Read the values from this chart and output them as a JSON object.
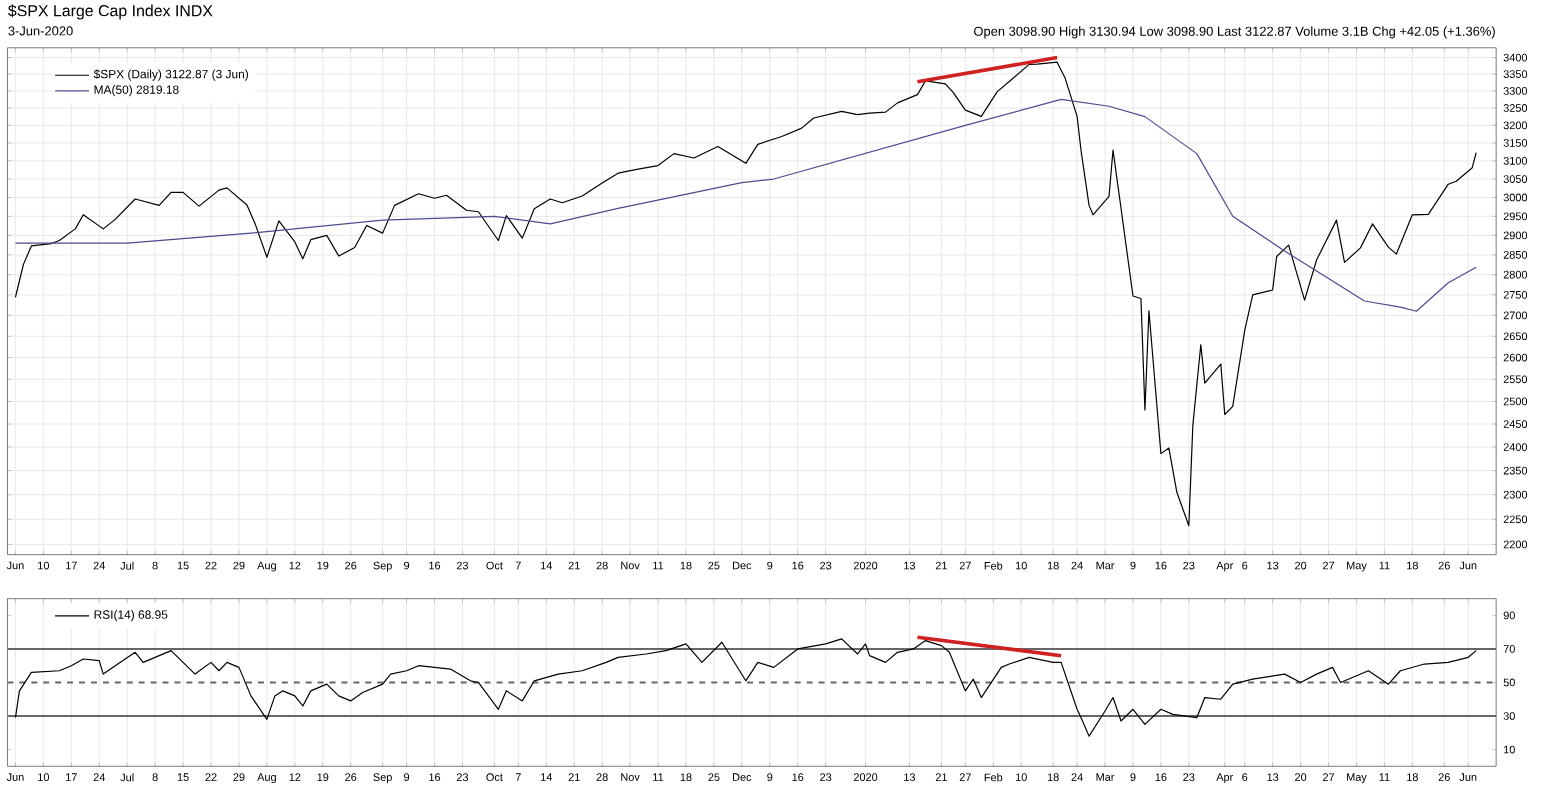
{
  "chart_data": [
    {
      "type": "line",
      "title": "$SPX Large Cap Index INDX",
      "subtitle": "3-Jun-2020",
      "annotations": [
        "Open 3098.90 High 3130.94 Low 3098.90 Last 3122.87 Volume 3.1B Chg +42.05 (+1.36%)"
      ],
      "log": "y",
      "grid": true,
      "legend": "top left",
      "xlim": [
        "2019-06-01",
        "2020-06-08"
      ],
      "xticks": [
        {
          "value": "2019-06-03",
          "label": "Jun"
        },
        {
          "value": "2019-06-10",
          "label": "10"
        },
        {
          "value": "2019-06-17",
          "label": "17"
        },
        {
          "value": "2019-06-24",
          "label": "24"
        },
        {
          "value": "2019-07-01",
          "label": "Jul"
        },
        {
          "value": "2019-07-08",
          "label": "8"
        },
        {
          "value": "2019-07-15",
          "label": "15"
        },
        {
          "value": "2019-07-22",
          "label": "22"
        },
        {
          "value": "2019-07-29",
          "label": "29"
        },
        {
          "value": "2019-08-05",
          "label": "Aug"
        },
        {
          "value": "2019-08-12",
          "label": "12"
        },
        {
          "value": "2019-08-19",
          "label": "19"
        },
        {
          "value": "2019-08-26",
          "label": "26"
        },
        {
          "value": "2019-09-03",
          "label": "Sep"
        },
        {
          "value": "2019-09-09",
          "label": "9"
        },
        {
          "value": "2019-09-16",
          "label": "16"
        },
        {
          "value": "2019-09-23",
          "label": "23"
        },
        {
          "value": "2019-10-01",
          "label": "Oct"
        },
        {
          "value": "2019-10-07",
          "label": "7"
        },
        {
          "value": "2019-10-14",
          "label": "14"
        },
        {
          "value": "2019-10-21",
          "label": "21"
        },
        {
          "value": "2019-10-28",
          "label": "28"
        },
        {
          "value": "2019-11-04",
          "label": "Nov"
        },
        {
          "value": "2019-11-11",
          "label": "11"
        },
        {
          "value": "2019-11-18",
          "label": "18"
        },
        {
          "value": "2019-11-25",
          "label": "25"
        },
        {
          "value": "2019-12-02",
          "label": "Dec"
        },
        {
          "value": "2019-12-09",
          "label": "9"
        },
        {
          "value": "2019-12-16",
          "label": "16"
        },
        {
          "value": "2019-12-23",
          "label": "23"
        },
        {
          "value": "2020-01-02",
          "label": "2020"
        },
        {
          "value": "2020-01-13",
          "label": "13"
        },
        {
          "value": "2020-01-21",
          "label": "21"
        },
        {
          "value": "2020-01-27",
          "label": "27"
        },
        {
          "value": "2020-02-03",
          "label": "Feb"
        },
        {
          "value": "2020-02-10",
          "label": "10"
        },
        {
          "value": "2020-02-18",
          "label": "18"
        },
        {
          "value": "2020-02-24",
          "label": "24"
        },
        {
          "value": "2020-03-02",
          "label": "Mar"
        },
        {
          "value": "2020-03-09",
          "label": "9"
        },
        {
          "value": "2020-03-16",
          "label": "16"
        },
        {
          "value": "2020-03-23",
          "label": "23"
        },
        {
          "value": "2020-04-01",
          "label": "Apr"
        },
        {
          "value": "2020-04-06",
          "label": "6"
        },
        {
          "value": "2020-04-13",
          "label": "13"
        },
        {
          "value": "2020-04-20",
          "label": "20"
        },
        {
          "value": "2020-04-27",
          "label": "27"
        },
        {
          "value": "2020-05-04",
          "label": "May"
        },
        {
          "value": "2020-05-11",
          "label": "11"
        },
        {
          "value": "2020-05-18",
          "label": "18"
        },
        {
          "value": "2020-05-26",
          "label": "26"
        },
        {
          "value": "2020-06-01",
          "label": "Jun"
        }
      ],
      "ylim": [
        2180,
        3430
      ],
      "yticks": [
        2200,
        2250,
        2300,
        2350,
        2400,
        2450,
        2500,
        2550,
        2600,
        2650,
        2700,
        2750,
        2800,
        2850,
        2900,
        2950,
        3000,
        3050,
        3100,
        3150,
        3200,
        3250,
        3300,
        3350,
        3400
      ],
      "series": [
        {
          "name": "$SPX (Daily) 3122.87 (3 Jun)",
          "color": "#000000",
          "x": [
            "2019-06-03",
            "2019-06-05",
            "2019-06-07",
            "2019-06-12",
            "2019-06-14",
            "2019-06-18",
            "2019-06-20",
            "2019-06-25",
            "2019-06-28",
            "2019-07-03",
            "2019-07-09",
            "2019-07-12",
            "2019-07-15",
            "2019-07-19",
            "2019-07-24",
            "2019-07-26",
            "2019-07-31",
            "2019-08-02",
            "2019-08-05",
            "2019-08-08",
            "2019-08-12",
            "2019-08-14",
            "2019-08-16",
            "2019-08-20",
            "2019-08-23",
            "2019-08-27",
            "2019-08-30",
            "2019-09-03",
            "2019-09-06",
            "2019-09-12",
            "2019-09-16",
            "2019-09-19",
            "2019-09-24",
            "2019-09-27",
            "2019-10-02",
            "2019-10-04",
            "2019-10-08",
            "2019-10-11",
            "2019-10-15",
            "2019-10-18",
            "2019-10-23",
            "2019-10-28",
            "2019-11-01",
            "2019-11-06",
            "2019-11-11",
            "2019-11-15",
            "2019-11-20",
            "2019-11-26",
            "2019-12-03",
            "2019-12-06",
            "2019-12-12",
            "2019-12-17",
            "2019-12-20",
            "2019-12-27",
            "2019-12-31",
            "2020-01-03",
            "2020-01-07",
            "2020-01-10",
            "2020-01-15",
            "2020-01-17",
            "2020-01-22",
            "2020-01-24",
            "2020-01-27",
            "2020-01-31",
            "2020-02-04",
            "2020-02-07",
            "2020-02-12",
            "2020-02-14",
            "2020-02-19",
            "2020-02-21",
            "2020-02-24",
            "2020-02-25",
            "2020-02-27",
            "2020-02-28",
            "2020-03-03",
            "2020-03-04",
            "2020-03-06",
            "2020-03-09",
            "2020-03-11",
            "2020-03-12",
            "2020-03-13",
            "2020-03-16",
            "2020-03-18",
            "2020-03-20",
            "2020-03-23",
            "2020-03-24",
            "2020-03-26",
            "2020-03-27",
            "2020-03-31",
            "2020-04-01",
            "2020-04-03",
            "2020-04-06",
            "2020-04-08",
            "2020-04-13",
            "2020-04-14",
            "2020-04-17",
            "2020-04-21",
            "2020-04-24",
            "2020-04-29",
            "2020-05-01",
            "2020-05-05",
            "2020-05-08",
            "2020-05-12",
            "2020-05-14",
            "2020-05-18",
            "2020-05-22",
            "2020-05-27",
            "2020-05-29",
            "2020-06-02",
            "2020-06-03"
          ],
          "values": [
            2744,
            2826,
            2873,
            2879,
            2887,
            2917,
            2954,
            2917,
            2942,
            2996,
            2979,
            3014,
            3014,
            2977,
            3020,
            3026,
            2980,
            2932,
            2844,
            2938,
            2883,
            2840,
            2889,
            2900,
            2847,
            2869,
            2926,
            2906,
            2979,
            3010,
            2998,
            3006,
            2966,
            2962,
            2887,
            2952,
            2893,
            2970,
            2996,
            2986,
            3004,
            3039,
            3066,
            3077,
            3087,
            3120,
            3108,
            3140,
            3093,
            3146,
            3168,
            3192,
            3221,
            3240,
            3231,
            3235,
            3238,
            3265,
            3289,
            3330,
            3321,
            3295,
            3244,
            3226,
            3298,
            3328,
            3379,
            3380,
            3386,
            3338,
            3226,
            3128,
            2979,
            2954,
            3003,
            3130,
            2972,
            2747,
            2741,
            2481,
            2711,
            2386,
            2398,
            2305,
            2237,
            2447,
            2630,
            2541,
            2585,
            2471,
            2489,
            2664,
            2750,
            2762,
            2846,
            2875,
            2737,
            2837,
            2940,
            2831,
            2868,
            2930,
            2870,
            2852,
            2954,
            2955,
            3036,
            3044,
            3081,
            3123
          ]
        },
        {
          "name": "MA(50) 2819.18",
          "color": "#4b4b8f",
          "x": [
            "2019-06-03",
            "2019-07-01",
            "2019-08-01",
            "2019-09-03",
            "2019-10-01",
            "2019-10-15",
            "2019-11-01",
            "2019-12-02",
            "2019-12-10",
            "2020-01-27",
            "2020-02-20",
            "2020-03-03",
            "2020-03-12",
            "2020-03-25",
            "2020-04-03",
            "2020-04-16",
            "2020-05-06",
            "2020-05-15",
            "2020-05-19",
            "2020-05-27",
            "2020-06-03"
          ],
          "values": [
            2880,
            2880,
            2906,
            2940,
            2950,
            2930,
            2971,
            3040,
            3050,
            3200,
            3275,
            3255,
            3225,
            3120,
            2950,
            2860,
            2735,
            2720,
            2710,
            2780,
            2819
          ]
        },
        {
          "color": "#d02020",
          "x": [
            "2020-01-15",
            "2020-02-19"
          ],
          "values": [
            3327,
            3400
          ]
        }
      ]
    },
    {
      "type": "line",
      "grid": "x",
      "legend": "top left",
      "xlim": [
        "2019-06-01",
        "2020-06-08"
      ],
      "xticks": [
        {
          "value": "2019-06-03",
          "label": "Jun"
        },
        {
          "value": "2019-06-10",
          "label": "10"
        },
        {
          "value": "2019-06-17",
          "label": "17"
        },
        {
          "value": "2019-06-24",
          "label": "24"
        },
        {
          "value": "2019-07-01",
          "label": "Jul"
        },
        {
          "value": "2019-07-08",
          "label": "8"
        },
        {
          "value": "2019-07-15",
          "label": "15"
        },
        {
          "value": "2019-07-22",
          "label": "22"
        },
        {
          "value": "2019-07-29",
          "label": "29"
        },
        {
          "value": "2019-08-05",
          "label": "Aug"
        },
        {
          "value": "2019-08-12",
          "label": "12"
        },
        {
          "value": "2019-08-19",
          "label": "19"
        },
        {
          "value": "2019-08-26",
          "label": "26"
        },
        {
          "value": "2019-09-03",
          "label": "Sep"
        },
        {
          "value": "2019-09-09",
          "label": "9"
        },
        {
          "value": "2019-09-16",
          "label": "16"
        },
        {
          "value": "2019-09-23",
          "label": "23"
        },
        {
          "value": "2019-10-01",
          "label": "Oct"
        },
        {
          "value": "2019-10-07",
          "label": "7"
        },
        {
          "value": "2019-10-14",
          "label": "14"
        },
        {
          "value": "2019-10-21",
          "label": "21"
        },
        {
          "value": "2019-10-28",
          "label": "28"
        },
        {
          "value": "2019-11-04",
          "label": "Nov"
        },
        {
          "value": "2019-11-11",
          "label": "11"
        },
        {
          "value": "2019-11-18",
          "label": "18"
        },
        {
          "value": "2019-11-25",
          "label": "25"
        },
        {
          "value": "2019-12-02",
          "label": "Dec"
        },
        {
          "value": "2019-12-09",
          "label": "9"
        },
        {
          "value": "2019-12-16",
          "label": "16"
        },
        {
          "value": "2019-12-23",
          "label": "23"
        },
        {
          "value": "2020-01-02",
          "label": "2020"
        },
        {
          "value": "2020-01-13",
          "label": "13"
        },
        {
          "value": "2020-01-21",
          "label": "21"
        },
        {
          "value": "2020-01-27",
          "label": "27"
        },
        {
          "value": "2020-02-03",
          "label": "Feb"
        },
        {
          "value": "2020-02-10",
          "label": "10"
        },
        {
          "value": "2020-02-18",
          "label": "18"
        },
        {
          "value": "2020-02-24",
          "label": "24"
        },
        {
          "value": "2020-03-02",
          "label": "Mar"
        },
        {
          "value": "2020-03-09",
          "label": "9"
        },
        {
          "value": "2020-03-16",
          "label": "16"
        },
        {
          "value": "2020-03-23",
          "label": "23"
        },
        {
          "value": "2020-04-01",
          "label": "Apr"
        },
        {
          "value": "2020-04-06",
          "label": "6"
        },
        {
          "value": "2020-04-13",
          "label": "13"
        },
        {
          "value": "2020-04-20",
          "label": "20"
        },
        {
          "value": "2020-04-27",
          "label": "27"
        },
        {
          "value": "2020-05-04",
          "label": "May"
        },
        {
          "value": "2020-05-11",
          "label": "11"
        },
        {
          "value": "2020-05-18",
          "label": "18"
        },
        {
          "value": "2020-05-26",
          "label": "26"
        },
        {
          "value": "2020-06-01",
          "label": "Jun"
        }
      ],
      "ylim": [
        0,
        100
      ],
      "yticks": [
        10,
        30,
        50,
        70,
        90
      ],
      "ref_lines": [
        {
          "axis": "y",
          "value": 70,
          "color": "#666666",
          "line_style": "solid"
        },
        {
          "axis": "y",
          "value": 50,
          "color": "#666666",
          "line_style": "dashed"
        },
        {
          "axis": "y",
          "value": 30,
          "color": "#666666",
          "line_style": "solid"
        }
      ],
      "series": [
        {
          "name": "RSI(14) 68.95",
          "color": "#000000",
          "x": [
            "2019-06-03",
            "2019-06-04",
            "2019-06-07",
            "2019-06-14",
            "2019-06-17",
            "2019-06-20",
            "2019-06-24",
            "2019-06-25",
            "2019-06-28",
            "2019-07-03",
            "2019-07-05",
            "2019-07-12",
            "2019-07-15",
            "2019-07-18",
            "2019-07-22",
            "2019-07-24",
            "2019-07-26",
            "2019-07-29",
            "2019-08-01",
            "2019-08-05",
            "2019-08-07",
            "2019-08-09",
            "2019-08-12",
            "2019-08-14",
            "2019-08-16",
            "2019-08-20",
            "2019-08-23",
            "2019-08-26",
            "2019-08-29",
            "2019-09-03",
            "2019-09-05",
            "2019-09-09",
            "2019-09-12",
            "2019-09-20",
            "2019-09-25",
            "2019-09-27",
            "2019-10-02",
            "2019-10-04",
            "2019-10-08",
            "2019-10-11",
            "2019-10-17",
            "2019-10-23",
            "2019-10-29",
            "2019-11-01",
            "2019-11-08",
            "2019-11-13",
            "2019-11-18",
            "2019-11-22",
            "2019-11-27",
            "2019-12-03",
            "2019-12-06",
            "2019-12-10",
            "2019-12-16",
            "2019-12-23",
            "2019-12-27",
            "2019-12-31",
            "2020-01-02",
            "2020-01-03",
            "2020-01-07",
            "2020-01-10",
            "2020-01-14",
            "2020-01-17",
            "2020-01-21",
            "2020-01-23",
            "2020-01-27",
            "2020-01-29",
            "2020-01-31",
            "2020-02-05",
            "2020-02-07",
            "2020-02-12",
            "2020-02-18",
            "2020-02-20",
            "2020-02-24",
            "2020-02-25",
            "2020-02-27",
            "2020-03-02",
            "2020-03-04",
            "2020-03-06",
            "2020-03-09",
            "2020-03-12",
            "2020-03-16",
            "2020-03-19",
            "2020-03-25",
            "2020-03-27",
            "2020-03-31",
            "2020-04-03",
            "2020-04-08",
            "2020-04-16",
            "2020-04-20",
            "2020-04-24",
            "2020-04-28",
            "2020-04-30",
            "2020-05-07",
            "2020-05-12",
            "2020-05-15",
            "2020-05-21",
            "2020-05-27",
            "2020-06-01",
            "2020-06-03"
          ],
          "values": [
            29,
            45,
            56,
            57,
            60,
            64,
            63,
            55,
            60,
            68,
            62,
            69,
            62,
            55,
            62,
            57,
            62,
            59,
            42,
            28,
            42,
            45,
            42,
            36,
            45,
            49,
            42,
            39,
            44,
            49,
            55,
            57,
            60,
            58,
            51,
            50,
            34,
            45,
            39,
            51,
            55,
            57,
            62,
            65,
            67,
            69,
            73,
            62,
            74,
            51,
            62,
            59,
            70,
            73,
            76,
            67,
            73,
            66,
            62,
            68,
            70,
            75,
            72,
            68,
            45,
            52,
            41,
            59,
            61,
            65,
            62,
            62,
            34,
            29,
            18,
            33,
            41,
            27,
            34,
            25,
            34,
            31,
            29,
            41,
            40,
            49,
            52,
            55,
            50,
            55,
            59,
            50,
            57,
            49,
            57,
            61,
            62,
            65,
            69
          ]
        },
        {
          "color": "#d02020",
          "x": [
            "2020-01-15",
            "2020-02-20"
          ],
          "values": [
            77,
            66
          ]
        }
      ]
    }
  ]
}
